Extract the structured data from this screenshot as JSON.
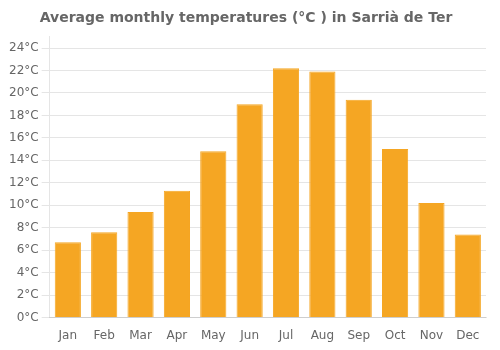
{
  "chart_data": {
    "type": "bar",
    "title": "Average monthly temperatures (°C ) in Sarrià de Ter",
    "categories": [
      "Jan",
      "Feb",
      "Mar",
      "Apr",
      "May",
      "Jun",
      "Jul",
      "Aug",
      "Sep",
      "Oct",
      "Nov",
      "Dec"
    ],
    "values": [
      6.7,
      7.6,
      9.4,
      11.3,
      14.8,
      19.0,
      22.2,
      21.9,
      19.4,
      15.0,
      10.2,
      7.4
    ],
    "color": "#F5A623",
    "ylim": [
      0,
      25
    ],
    "yticks": [
      {
        "value": 0,
        "label": "0°C"
      },
      {
        "value": 2,
        "label": "2°C"
      },
      {
        "value": 4,
        "label": "4°C"
      },
      {
        "value": 6,
        "label": "6°C"
      },
      {
        "value": 8,
        "label": "8°C"
      },
      {
        "value": 10,
        "label": "10°C"
      },
      {
        "value": 12,
        "label": "12°C"
      },
      {
        "value": 14,
        "label": "14°C"
      },
      {
        "value": 16,
        "label": "16°C"
      },
      {
        "value": 18,
        "label": "18°C"
      },
      {
        "value": 20,
        "label": "20°C"
      },
      {
        "value": 22,
        "label": "22°C"
      },
      {
        "value": 24,
        "label": "24°C"
      }
    ],
    "grid": true
  }
}
